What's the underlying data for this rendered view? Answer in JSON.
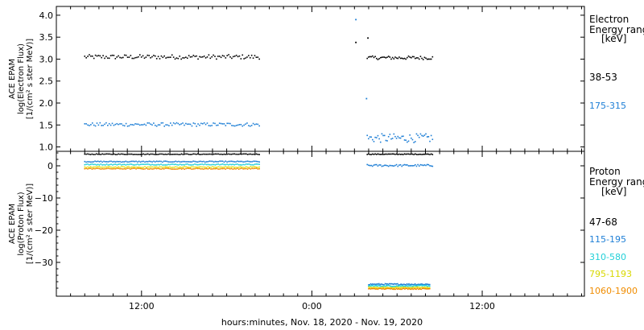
{
  "chart_data": [
    {
      "type": "scatter",
      "panel": "electron",
      "ylabel": [
        "ACE EPAM",
        "log(Electron Flux)",
        "[1/(cm² s ster MeV)]"
      ],
      "y_ticks": [
        "1.0",
        "1.5",
        "2.0",
        "2.5",
        "3.0",
        "3.5",
        "4.0"
      ],
      "ylim": [
        0.9,
        4.2
      ],
      "legend_title": [
        "Electron",
        "Energy range",
        "[keV]"
      ],
      "series": [
        {
          "name": "38-53",
          "color": "#000000",
          "segments": [
            {
              "x_start": 8.0,
              "x_end": 20.3,
              "mean": 3.05,
              "jitter": 0.05,
              "n": 115
            },
            {
              "x_start": 27.9,
              "x_end": 32.5,
              "mean": 3.03,
              "jitter": 0.04,
              "n": 50
            }
          ],
          "extra_points": [
            {
              "x": 27.1,
              "y": 3.38
            },
            {
              "x": 27.95,
              "y": 3.48
            }
          ]
        },
        {
          "name": "175-315",
          "color": "#1e7fd6",
          "segments": [
            {
              "x_start": 8.0,
              "x_end": 20.3,
              "mean": 1.51,
              "jitter": 0.04,
              "n": 115
            },
            {
              "x_start": 27.9,
              "x_end": 32.5,
              "mean": 1.2,
              "jitter": 0.1,
              "n": 50
            }
          ],
          "extra_points": [
            {
              "x": 27.1,
              "y": 3.9
            },
            {
              "x": 27.85,
              "y": 2.1
            }
          ]
        }
      ]
    },
    {
      "type": "scatter",
      "panel": "proton",
      "ylabel": [
        "ACE EPAM",
        "log(Proton Flux)",
        "[1/(cm² s ster MeV)]"
      ],
      "y_ticks": [
        "0",
        "−10",
        "−20",
        "−30"
      ],
      "y_tick_values": [
        0,
        -10,
        -20,
        -30
      ],
      "ylim": [
        -40.5,
        4.5
      ],
      "legend_title": [
        "Proton",
        "Energy range",
        "[keV]"
      ],
      "series": [
        {
          "name": "47-68",
          "color": "#000000",
          "segments": [
            {
              "x_start": 8.0,
              "x_end": 20.3,
              "mean": 3.6,
              "jitter": 0.1,
              "n": 120
            },
            {
              "x_start": 27.9,
              "x_end": 32.5,
              "mean": 3.6,
              "jitter": 0.1,
              "n": 50
            }
          ]
        },
        {
          "name": "115-195",
          "color": "#1e7fd6",
          "segments": [
            {
              "x_start": 8.0,
              "x_end": 20.3,
              "mean": 1.3,
              "jitter": 0.15,
              "n": 120
            },
            {
              "x_start": 27.9,
              "x_end": 32.5,
              "mean": 0.1,
              "jitter": 0.3,
              "n": 50
            },
            {
              "x_start": 28.0,
              "x_end": 32.3,
              "mean": -36.8,
              "jitter": 0.2,
              "n": 60
            }
          ]
        },
        {
          "name": "310-580",
          "color": "#22d0d8",
          "segments": [
            {
              "x_start": 8.0,
              "x_end": 20.3,
              "mean": 0.4,
              "jitter": 0.15,
              "n": 120
            },
            {
              "x_start": 28.0,
              "x_end": 32.3,
              "mean": -37.3,
              "jitter": 0.2,
              "n": 60
            }
          ]
        },
        {
          "name": "795-1193",
          "color": "#e2e21a",
          "segments": [
            {
              "x_start": 8.0,
              "x_end": 20.3,
              "mean": -0.4,
              "jitter": 0.15,
              "n": 120
            },
            {
              "x_start": 28.0,
              "x_end": 32.3,
              "mean": -37.8,
              "jitter": 0.15,
              "n": 60
            }
          ]
        },
        {
          "name": "1060-1900",
          "color": "#f08c00",
          "segments": [
            {
              "x_start": 8.0,
              "x_end": 20.3,
              "mean": -0.9,
              "jitter": 0.15,
              "n": 120
            },
            {
              "x_start": 28.0,
              "x_end": 32.3,
              "mean": -38.2,
              "jitter": 0.15,
              "n": 60
            }
          ]
        }
      ]
    }
  ],
  "x_axis": {
    "xlabel": "hours:minutes, Nov. 18, 2020 - Nov. 19, 2020",
    "xlim": [
      6.0,
      43.2
    ],
    "x_units": "hours from 00:00 Nov. 18, 2020 UT",
    "ticks": [
      {
        "value": 12,
        "label": "12:00"
      },
      {
        "value": 24,
        "label": "0:00"
      },
      {
        "value": 36,
        "label": "12:00"
      }
    ]
  }
}
